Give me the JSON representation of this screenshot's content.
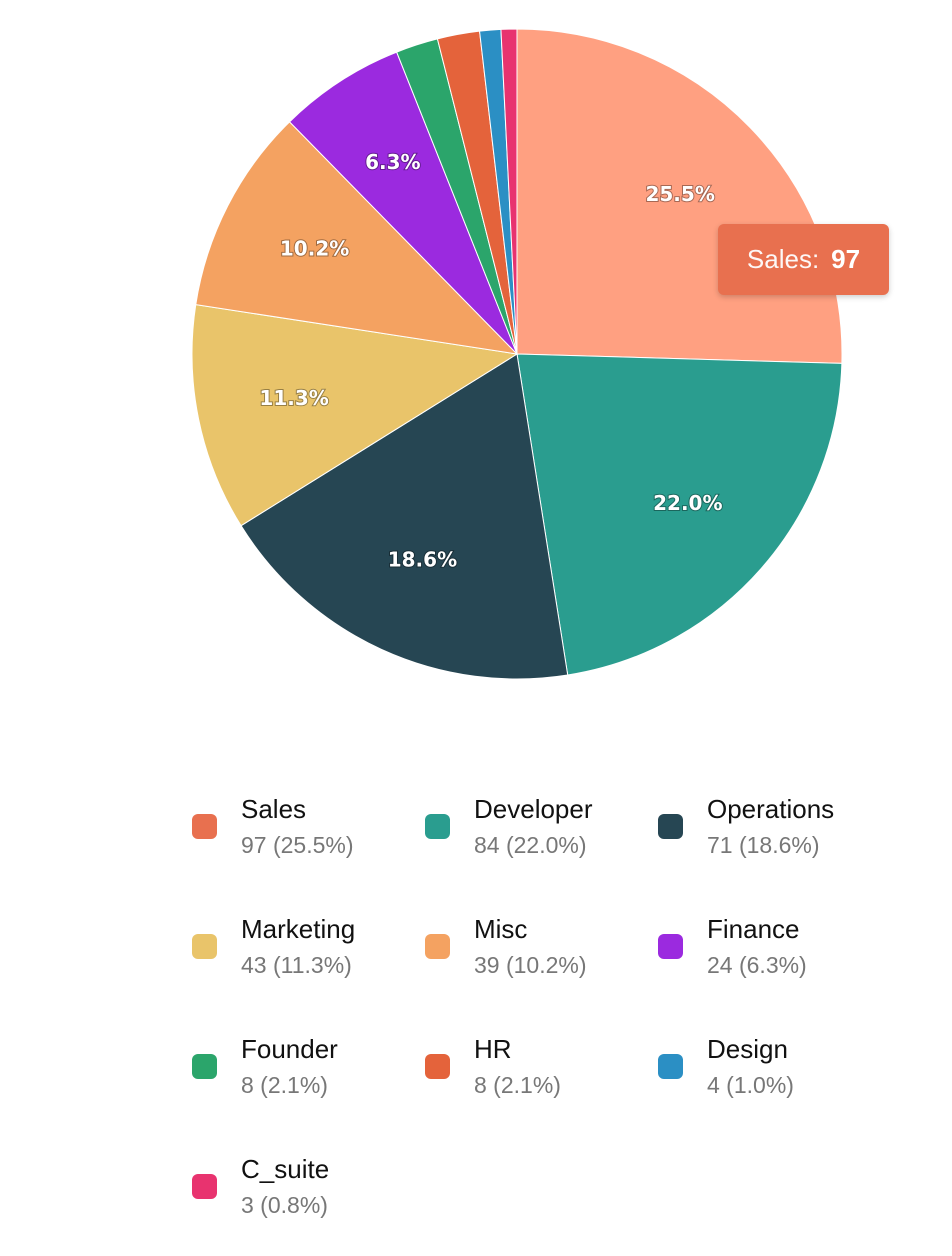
{
  "chart_data": {
    "type": "pie",
    "start_angle_deg": 0,
    "direction": "clockwise",
    "legend_position": "bottom",
    "slices": [
      {
        "name": "Sales",
        "value": 97,
        "percent_label": "25.5%",
        "legend_value": "97 (25.5%)",
        "color": "#FFA081",
        "swatch_color": "#E8704F",
        "show_label": true
      },
      {
        "name": "Developer",
        "value": 84,
        "percent_label": "22.0%",
        "legend_value": "84 (22.0%)",
        "color": "#2A9D8F",
        "swatch_color": "#2A9D8F",
        "show_label": true
      },
      {
        "name": "Operations",
        "value": 71,
        "percent_label": "18.6%",
        "legend_value": "71 (18.6%)",
        "color": "#264653",
        "swatch_color": "#264653",
        "show_label": true
      },
      {
        "name": "Marketing",
        "value": 43,
        "percent_label": "11.3%",
        "legend_value": "43 (11.3%)",
        "color": "#E9C46A",
        "swatch_color": "#E9C46A",
        "show_label": true
      },
      {
        "name": "Misc",
        "value": 39,
        "percent_label": "10.2%",
        "legend_value": "39 (10.2%)",
        "color": "#F4A261",
        "swatch_color": "#F4A261",
        "show_label": true
      },
      {
        "name": "Finance",
        "value": 24,
        "percent_label": "6.3%",
        "legend_value": "24 (6.3%)",
        "color": "#9B2ADF",
        "swatch_color": "#9B2ADF",
        "show_label": true
      },
      {
        "name": "Founder",
        "value": 8,
        "percent_label": "2.1%",
        "legend_value": "8 (2.1%)",
        "color": "#2BA56B",
        "swatch_color": "#2BA56B",
        "show_label": false
      },
      {
        "name": "HR",
        "value": 8,
        "percent_label": "2.1%",
        "legend_value": "8 (2.1%)",
        "color": "#E4633B",
        "swatch_color": "#E4633B",
        "show_label": false
      },
      {
        "name": "Design",
        "value": 4,
        "percent_label": "1.0%",
        "legend_value": "4 (1.0%)",
        "color": "#2B8FC4",
        "swatch_color": "#2B8FC4",
        "show_label": false
      },
      {
        "name": "C_suite",
        "value": 3,
        "percent_label": "0.8%",
        "legend_value": "3 (0.8%)",
        "color": "#E8336F",
        "swatch_color": "#E8336F",
        "show_label": false
      }
    ]
  },
  "tooltip": {
    "label": "Sales:",
    "value": "97",
    "background": "#E8704F"
  }
}
